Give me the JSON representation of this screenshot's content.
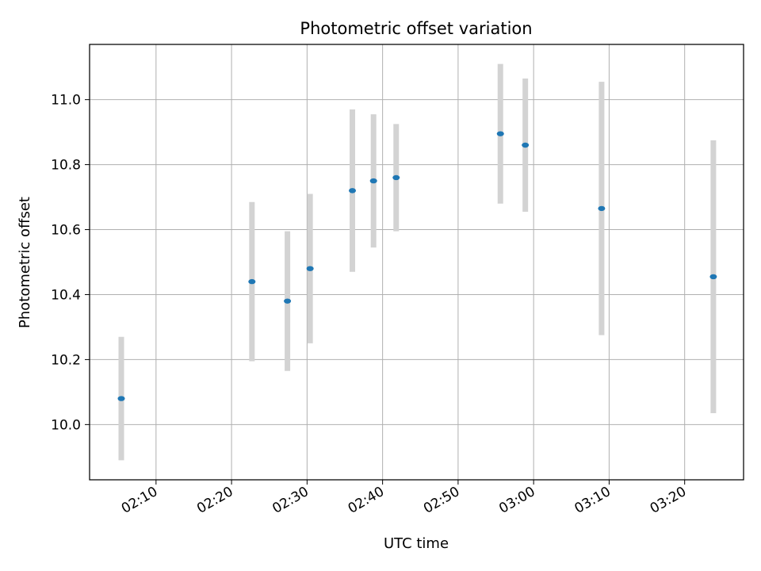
{
  "chart_data": {
    "type": "scatter",
    "title": "Photometric offset variation",
    "xlabel": "UTC time",
    "ylabel": "Photometric offset",
    "x_ticks": [
      "02:10",
      "02:20",
      "02:30",
      "02:40",
      "02:50",
      "03:00",
      "03:10",
      "03:20"
    ],
    "x_tick_minutes": [
      130,
      140,
      150,
      160,
      170,
      180,
      190,
      200
    ],
    "xlim_minutes": [
      121.2,
      207.8
    ],
    "y_ticks": [
      "10.0",
      "10.2",
      "10.4",
      "10.6",
      "10.8",
      "11.0"
    ],
    "y_tick_values": [
      10.0,
      10.2,
      10.4,
      10.6,
      10.8,
      11.0
    ],
    "ylim": [
      9.83,
      11.17
    ],
    "grid": true,
    "colors": {
      "point": "#1f77b4",
      "errorbar": "#d3d3d3",
      "grid": "#b0b0b0"
    },
    "points": [
      {
        "time": "02:05:24",
        "minutes": 125.4,
        "y": 10.08,
        "err": 0.19
      },
      {
        "time": "02:22:42",
        "minutes": 142.7,
        "y": 10.44,
        "err": 0.245
      },
      {
        "time": "02:27:24",
        "minutes": 147.4,
        "y": 10.38,
        "err": 0.215
      },
      {
        "time": "02:30:24",
        "minutes": 150.4,
        "y": 10.48,
        "err": 0.23
      },
      {
        "time": "02:36:00",
        "minutes": 156.0,
        "y": 10.72,
        "err": 0.25
      },
      {
        "time": "02:38:48",
        "minutes": 158.8,
        "y": 10.75,
        "err": 0.205
      },
      {
        "time": "02:41:48",
        "minutes": 161.8,
        "y": 10.76,
        "err": 0.165
      },
      {
        "time": "02:55:36",
        "minutes": 175.6,
        "y": 10.895,
        "err": 0.215
      },
      {
        "time": "02:58:54",
        "minutes": 178.9,
        "y": 10.86,
        "err": 0.205
      },
      {
        "time": "03:09:00",
        "minutes": 189.0,
        "y": 10.665,
        "err": 0.39
      },
      {
        "time": "03:23:48",
        "minutes": 203.8,
        "y": 10.455,
        "err": 0.42
      }
    ]
  }
}
